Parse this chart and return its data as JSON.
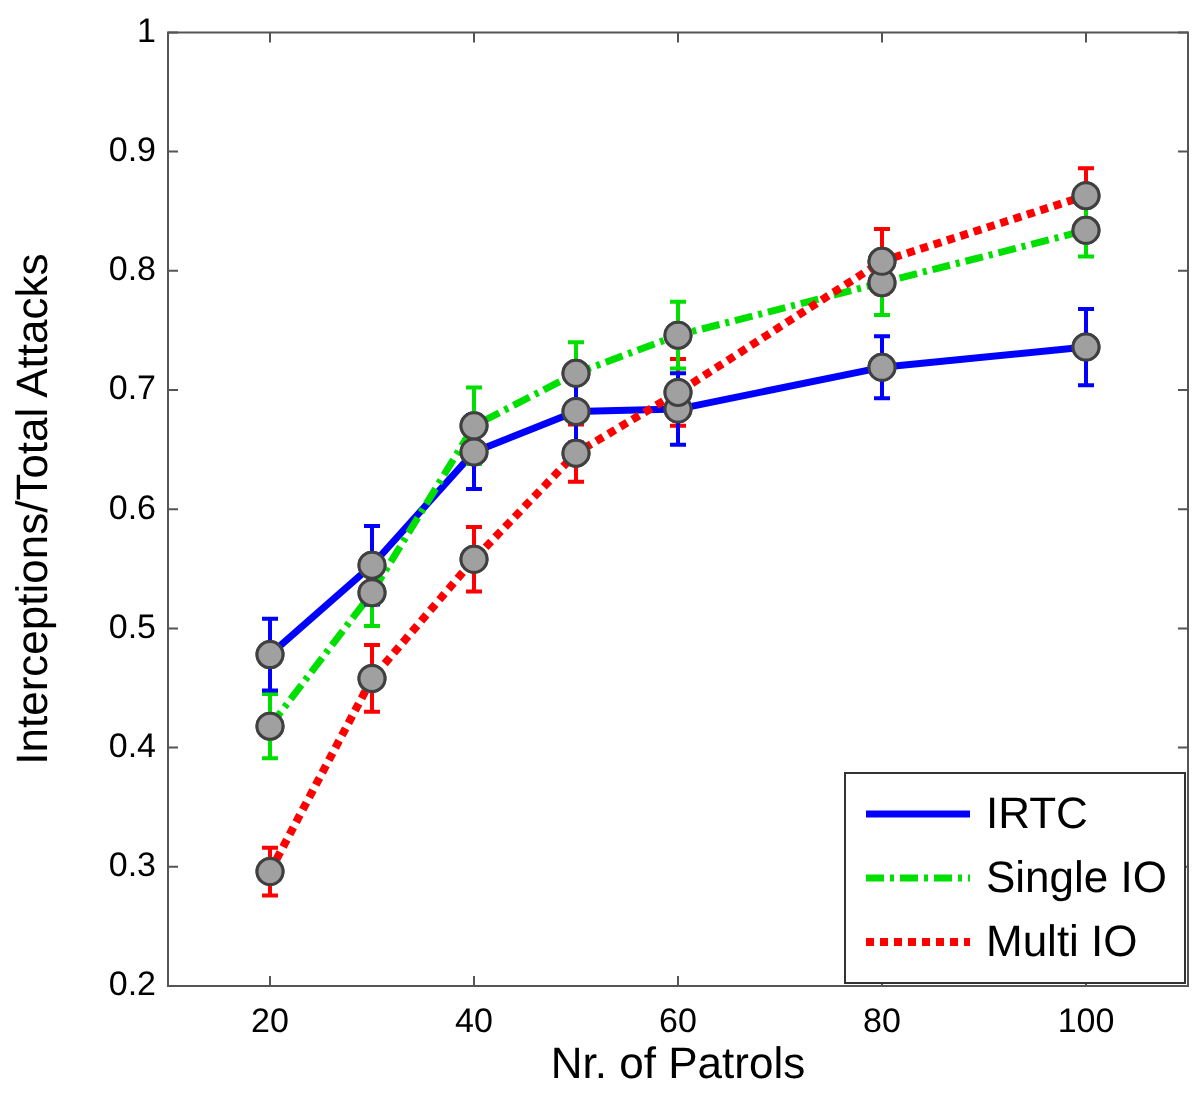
{
  "chart_data": {
    "type": "line",
    "xlabel": "Nr. of Patrols",
    "ylabel": "Interceptions/Total Attacks",
    "x": [
      20,
      30,
      40,
      50,
      60,
      80,
      100
    ],
    "xlim": [
      10,
      110
    ],
    "xticks": [
      20,
      40,
      60,
      80,
      100
    ],
    "ylim": [
      0.2,
      1
    ],
    "yticks": [
      0.2,
      0.3,
      0.4,
      0.5,
      0.6,
      0.7,
      0.8,
      0.9,
      1
    ],
    "grid": false,
    "legend": "bottom right",
    "marker": "circle",
    "series": [
      {
        "name": "IRTC",
        "color": "#0000ff",
        "line_style": "solid",
        "values": [
          0.478,
          0.553,
          0.648,
          0.682,
          0.684,
          0.719,
          0.736
        ],
        "errors": [
          0.03,
          0.033,
          0.031,
          0.026,
          0.03,
          0.026,
          0.032
        ]
      },
      {
        "name": "Single IO",
        "color": "#00e000",
        "line_style": "dashed",
        "values": [
          0.418,
          0.53,
          0.67,
          0.714,
          0.746,
          0.79,
          0.834
        ],
        "errors": [
          0.027,
          0.028,
          0.032,
          0.026,
          0.028,
          0.027,
          0.022
        ]
      },
      {
        "name": "Multi IO",
        "color": "#ff0000",
        "line_style": "dotted",
        "values": [
          0.296,
          0.458,
          0.558,
          0.647,
          0.698,
          0.808,
          0.863
        ],
        "errors": [
          0.02,
          0.028,
          0.027,
          0.024,
          0.028,
          0.027,
          0.023
        ]
      }
    ]
  }
}
